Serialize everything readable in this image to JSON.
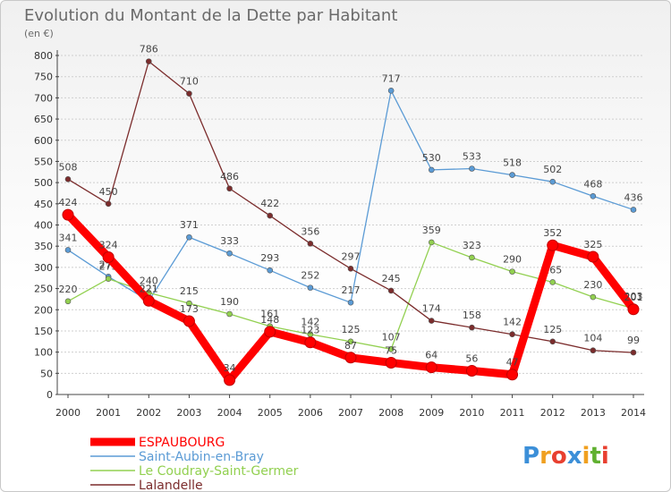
{
  "chart_data": {
    "type": "line",
    "title": "Evolution du Montant de la Dette par Habitant",
    "subtitle": "(en €)",
    "xlabel": "",
    "ylabel": "",
    "x": [
      "2000",
      "2001",
      "2002",
      "2003",
      "2004",
      "2005",
      "2006",
      "2007",
      "2008",
      "2009",
      "2010",
      "2011",
      "2012",
      "2013",
      "2014"
    ],
    "ylim": [
      0,
      800
    ],
    "yticks": [
      0,
      50,
      100,
      150,
      200,
      250,
      300,
      350,
      400,
      450,
      500,
      550,
      600,
      650,
      700,
      750,
      800
    ],
    "grid": true,
    "legend_position": "bottom-left",
    "series": [
      {
        "name": "Saint-Aubin-en-Bray",
        "color": "#5b9bd5",
        "values": [
          341,
          278,
          221,
          371,
          333,
          293,
          252,
          217,
          717,
          530,
          533,
          518,
          502,
          468,
          436
        ]
      },
      {
        "name": "Le Coudray-Saint-Germer",
        "color": "#92d050",
        "values": [
          220,
          273,
          240,
          215,
          190,
          161,
          142,
          125,
          107,
          359,
          323,
          290,
          265,
          230,
          203
        ]
      },
      {
        "name": "Lalandelle",
        "color": "#7b2c2c",
        "values": [
          508,
          450,
          786,
          710,
          486,
          422,
          356,
          297,
          245,
          174,
          158,
          142,
          125,
          104,
          99
        ]
      },
      {
        "name": "ESPAUBOURG",
        "color": "#ff0000",
        "values": [
          424,
          324,
          221,
          173,
          34,
          148,
          123,
          87,
          75,
          64,
          56,
          47,
          352,
          325,
          201
        ]
      }
    ]
  },
  "legend_order": [
    3,
    0,
    1,
    2
  ],
  "logo": {
    "letters": [
      "P",
      "r",
      "o",
      "x",
      "i",
      "t",
      "i"
    ],
    "colors": [
      "#3c8fd8",
      "#f0a020",
      "#e84030",
      "#3c8fd8",
      "#f0a020",
      "#60b030",
      "#e84030"
    ]
  }
}
